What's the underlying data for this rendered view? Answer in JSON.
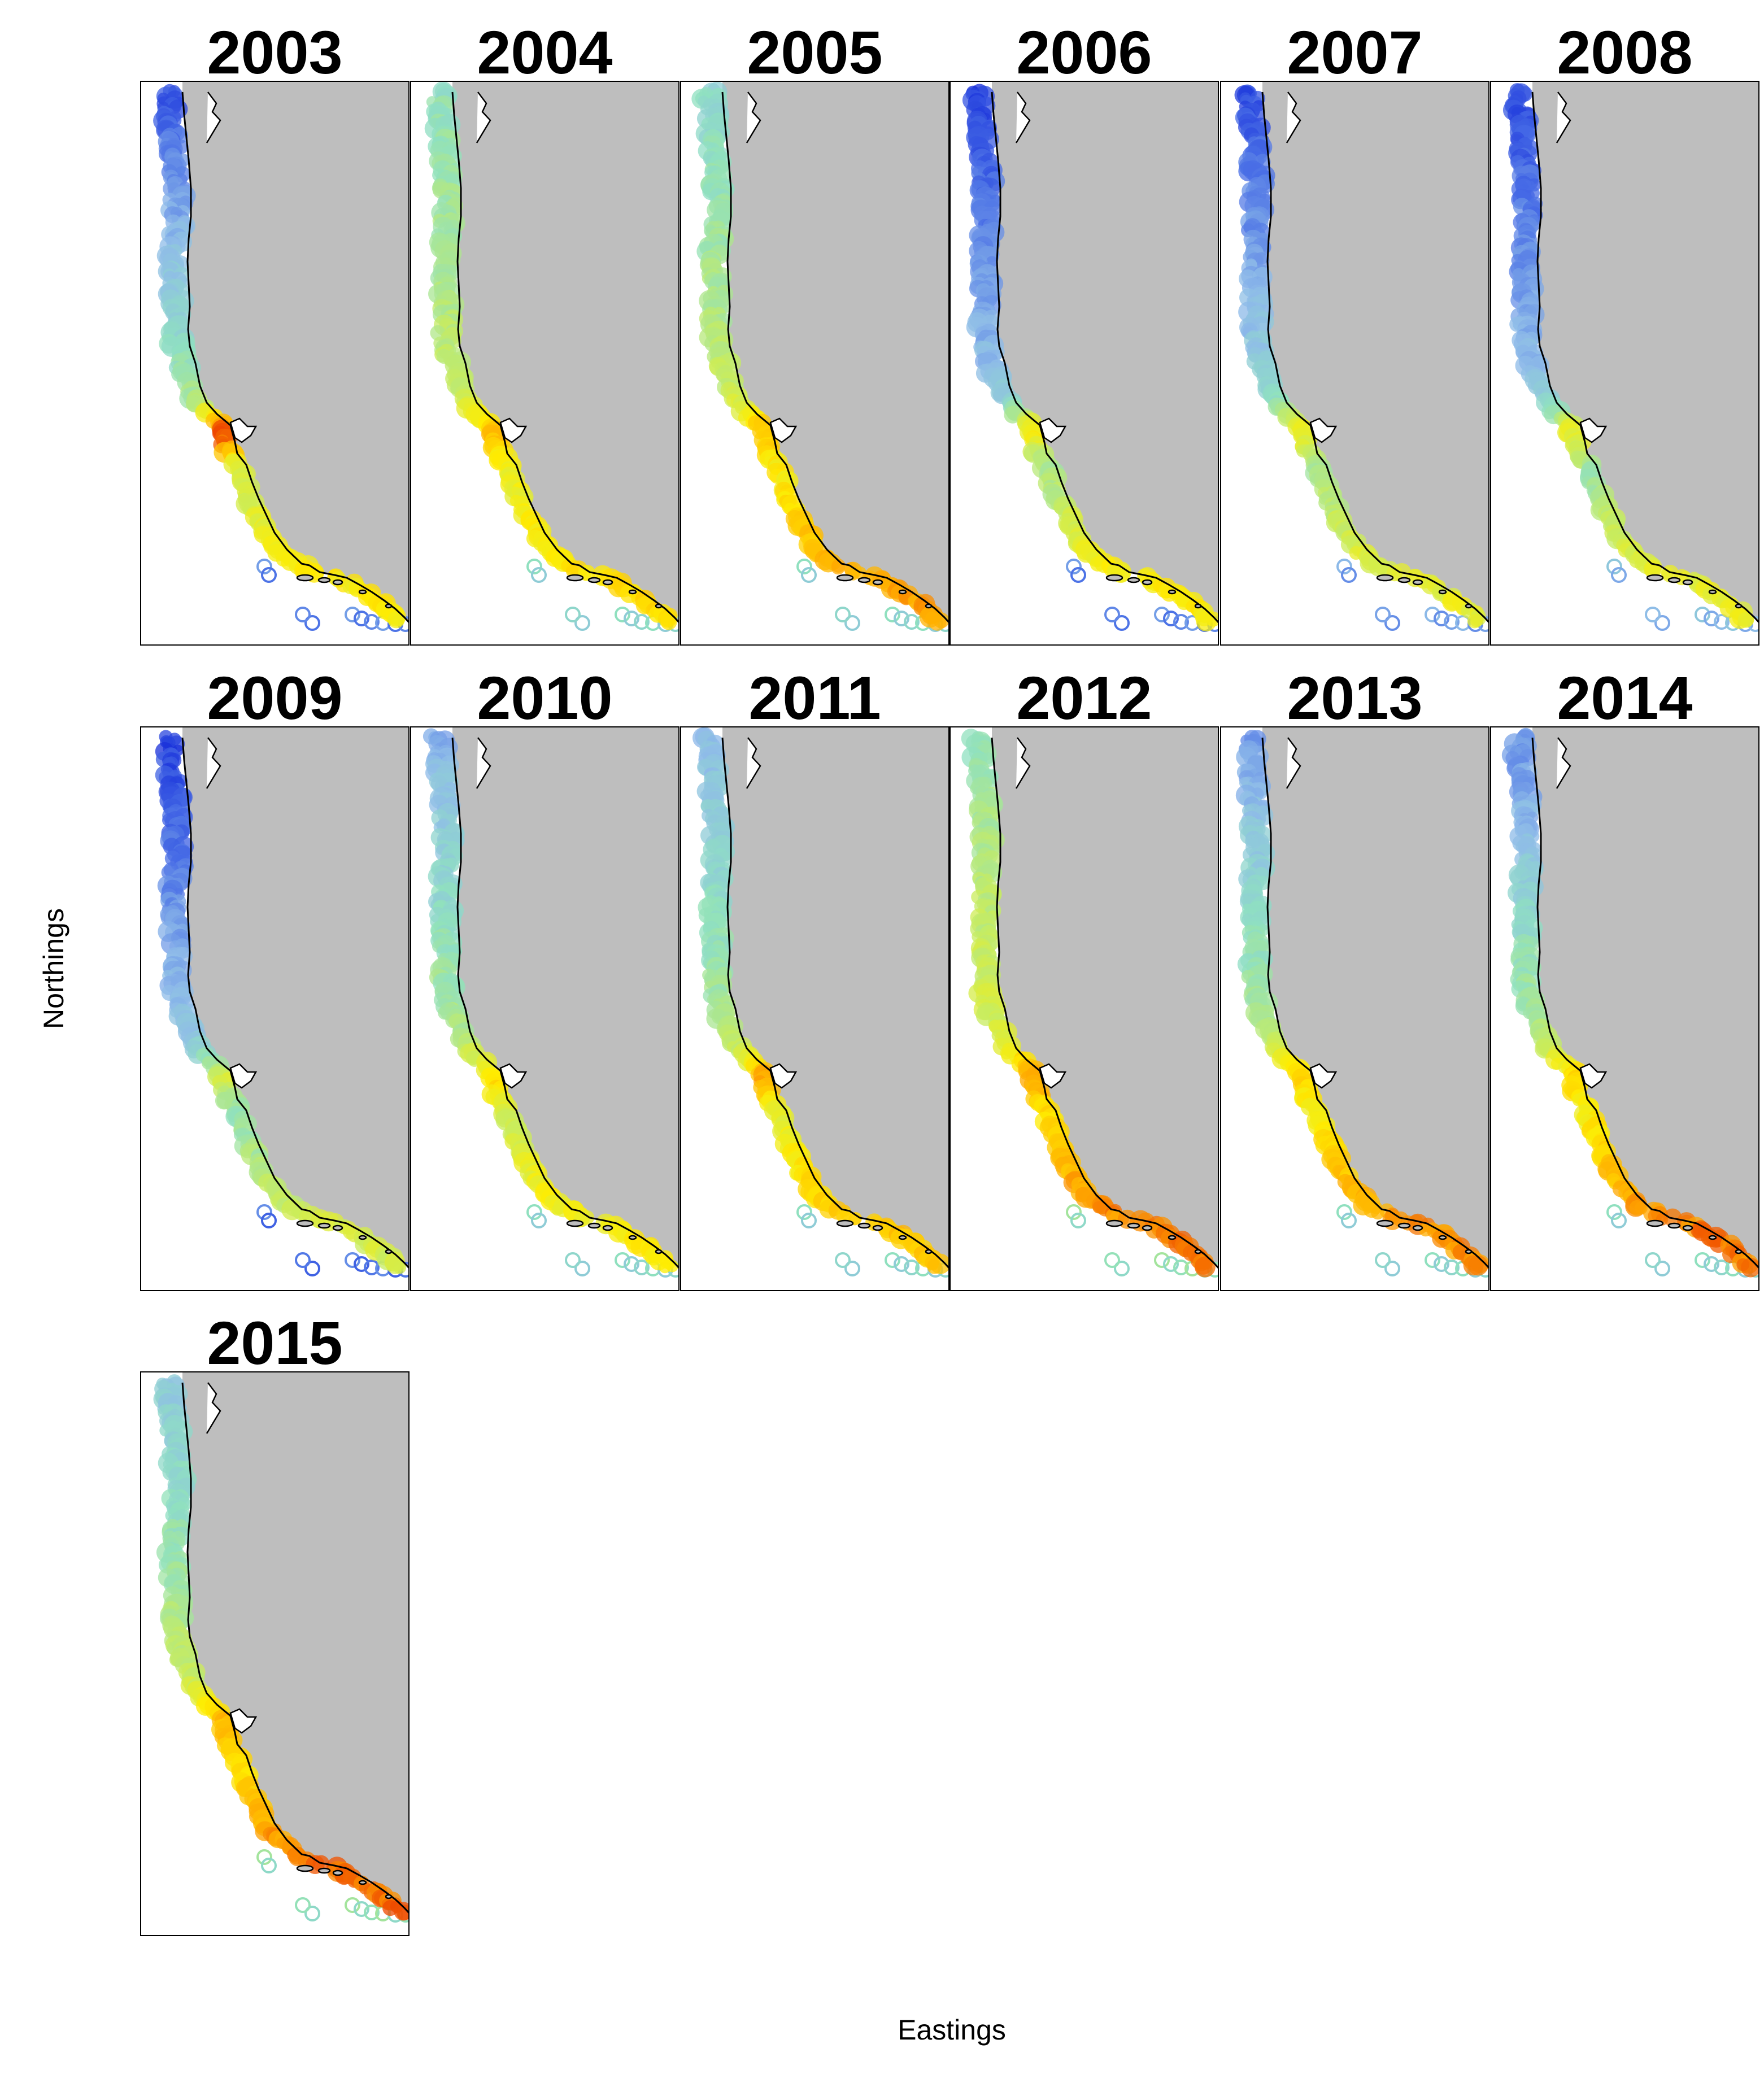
{
  "figure": {
    "xlabel": "Eastings",
    "ylabel": "Northings"
  },
  "colors": {
    "land": "#bebebe",
    "coastline": "#000000",
    "ocean": "#ffffff",
    "scale": [
      "#0a1ed6",
      "#4a6fe6",
      "#8fbce8",
      "#8fe0c0",
      "#c8ec5e",
      "#ffec00",
      "#ffa800",
      "#e61e00"
    ]
  },
  "chart_data": {
    "type": "map-small-multiples",
    "value_scale_note": "",
    "panels": [
      {
        "title": "2003",
        "north_intensity": 0.08,
        "central_intensity": 0.45,
        "sf_intensity": 0.95,
        "south_intensity": 0.7,
        "offshore_intensity": 0.15
      },
      {
        "title": "2004",
        "north_intensity": 0.42,
        "central_intensity": 0.55,
        "sf_intensity": 0.8,
        "south_intensity": 0.75,
        "offshore_intensity": 0.35
      },
      {
        "title": "2005",
        "north_intensity": 0.38,
        "central_intensity": 0.55,
        "sf_intensity": 0.8,
        "south_intensity": 0.85,
        "offshore_intensity": 0.35
      },
      {
        "title": "2006",
        "north_intensity": 0.05,
        "central_intensity": 0.3,
        "sf_intensity": 0.7,
        "south_intensity": 0.7,
        "offshore_intensity": 0.15
      },
      {
        "title": "2007",
        "north_intensity": 0.06,
        "central_intensity": 0.35,
        "sf_intensity": 0.65,
        "south_intensity": 0.65,
        "offshore_intensity": 0.2
      },
      {
        "title": "2008",
        "north_intensity": 0.06,
        "central_intensity": 0.3,
        "sf_intensity": 0.65,
        "south_intensity": 0.65,
        "offshore_intensity": 0.25
      },
      {
        "title": "2009",
        "north_intensity": 0.05,
        "central_intensity": 0.3,
        "sf_intensity": 0.6,
        "south_intensity": 0.6,
        "offshore_intensity": 0.12
      },
      {
        "title": "2010",
        "north_intensity": 0.25,
        "central_intensity": 0.5,
        "sf_intensity": 0.75,
        "south_intensity": 0.7,
        "offshore_intensity": 0.35
      },
      {
        "title": "2011",
        "north_intensity": 0.28,
        "central_intensity": 0.5,
        "sf_intensity": 0.85,
        "south_intensity": 0.8,
        "offshore_intensity": 0.35
      },
      {
        "title": "2012",
        "north_intensity": 0.45,
        "central_intensity": 0.6,
        "sf_intensity": 0.85,
        "south_intensity": 0.9,
        "offshore_intensity": 0.4
      },
      {
        "title": "2013",
        "north_intensity": 0.22,
        "central_intensity": 0.5,
        "sf_intensity": 0.75,
        "south_intensity": 0.88,
        "offshore_intensity": 0.35
      },
      {
        "title": "2014",
        "north_intensity": 0.18,
        "central_intensity": 0.5,
        "sf_intensity": 0.75,
        "south_intensity": 0.9,
        "offshore_intensity": 0.35
      },
      {
        "title": "2015",
        "north_intensity": 0.32,
        "central_intensity": 0.55,
        "sf_intensity": 0.82,
        "south_intensity": 0.92,
        "offshore_intensity": 0.4
      }
    ]
  }
}
